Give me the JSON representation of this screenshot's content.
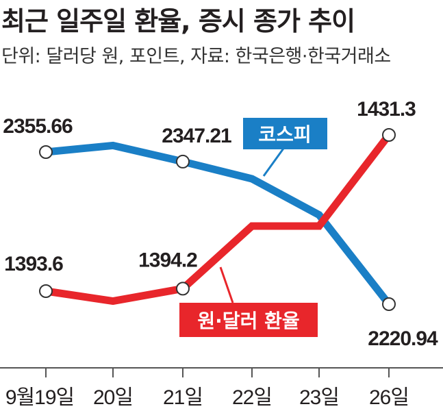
{
  "title": "최근 일주일 환율, 증시 종가 추이",
  "subtitle": "단위: 달러당 원, 포인트, 자료: 한국은행·한국거래소",
  "colors": {
    "kospi": "#1a7fc6",
    "krw": "#e8262b",
    "text": "#231f20",
    "axis": "#555555"
  },
  "chart_data": {
    "type": "line",
    "categories": [
      "9월19일",
      "20일",
      "21일",
      "22일",
      "23일",
      "26일"
    ],
    "series": [
      {
        "name": "코스피",
        "values": [
          2355.66,
          2361.5,
          2347.21,
          2332.0,
          2300.0,
          2220.94
        ],
        "labels": [
          "2355.66",
          "",
          "2347.21",
          "",
          "",
          "2220.94"
        ]
      },
      {
        "name": "원·달러 환율",
        "values": [
          1393.6,
          1391.2,
          1394.2,
          1409.3,
          1409.3,
          1431.3
        ],
        "labels": [
          "1393.6",
          "",
          "1394.2",
          "",
          "",
          "1431.3"
        ]
      }
    ]
  }
}
